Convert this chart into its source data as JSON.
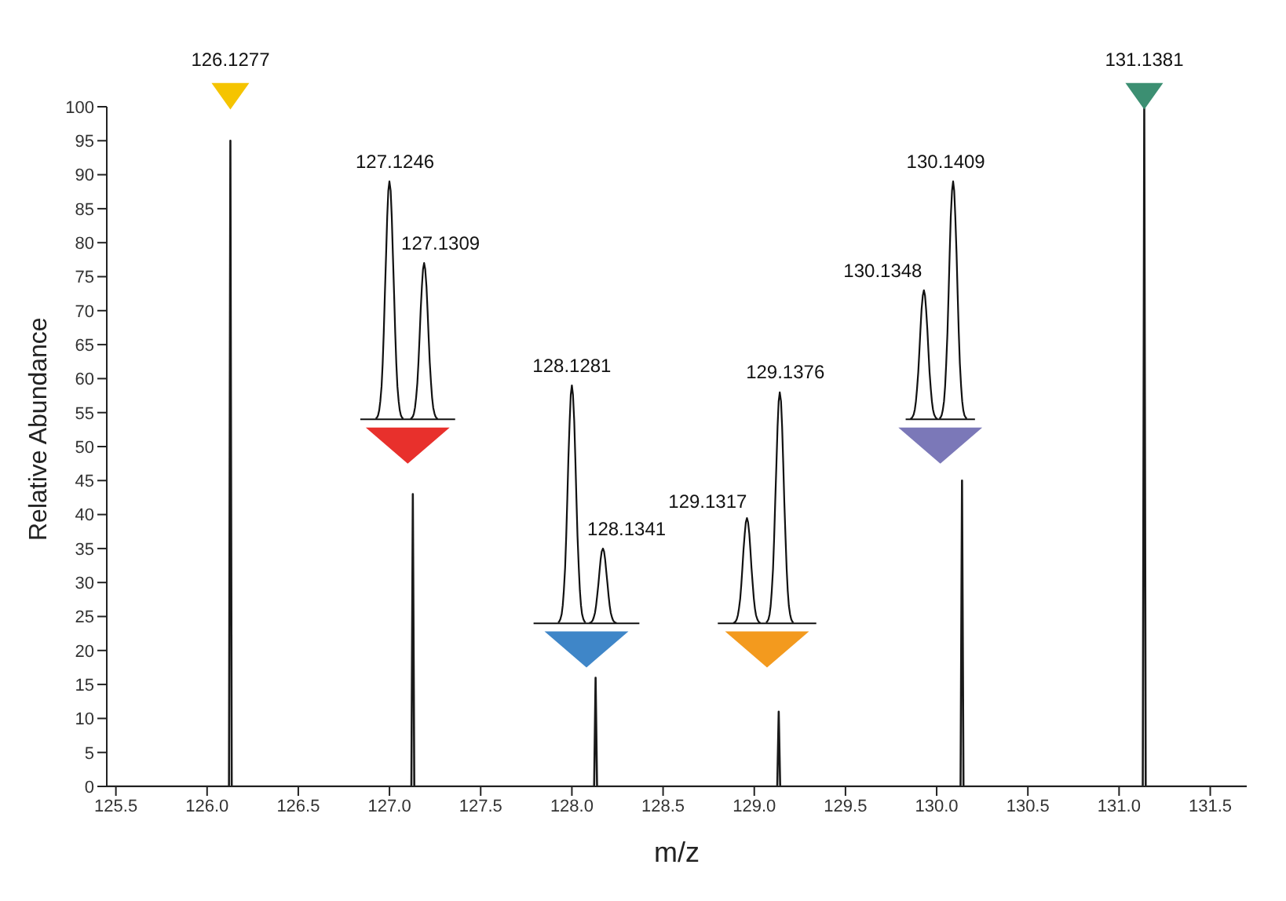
{
  "chart_data": {
    "type": "line",
    "xlabel": "m/z",
    "ylabel": "Relative Abundance",
    "x": [
      125.45,
      126.12,
      126.1277,
      126.135,
      127.12,
      127.128,
      127.136,
      128.122,
      128.13,
      128.138,
      129.126,
      129.134,
      129.142,
      130.131,
      130.139,
      130.147,
      131.13,
      131.1381,
      131.146,
      131.7
    ],
    "series": [
      {
        "color": "#1a1a1a",
        "values": [
          0,
          0,
          95,
          0,
          0,
          43,
          0,
          0,
          16,
          0,
          0,
          11,
          0,
          0,
          45,
          0,
          0,
          100,
          0,
          0
        ]
      }
    ],
    "xlim": [
      125.45,
      131.7
    ],
    "xticks": [
      125.5,
      {
        "value": 126,
        "label": "126.0"
      },
      126.5,
      {
        "value": 127,
        "label": "127.0"
      },
      127.5,
      {
        "value": 128,
        "label": "128.0"
      },
      128.5,
      {
        "value": 129,
        "label": "129.0"
      },
      129.5,
      {
        "value": 130,
        "label": "130.0"
      },
      130.5,
      {
        "value": 131,
        "label": "131.0"
      },
      131.5
    ],
    "ylim": [
      0,
      100
    ],
    "yticks": [
      0,
      5,
      10,
      15,
      20,
      25,
      30,
      35,
      40,
      45,
      50,
      55,
      60,
      65,
      70,
      75,
      80,
      85,
      90,
      95,
      100
    ],
    "annotations": [
      "126.1277",
      "127.1246",
      "127.1309",
      "128.1281",
      "128.1341",
      "129.1317",
      "129.1376",
      "130.1348",
      "130.1409",
      "131.1381"
    ]
  }
}
